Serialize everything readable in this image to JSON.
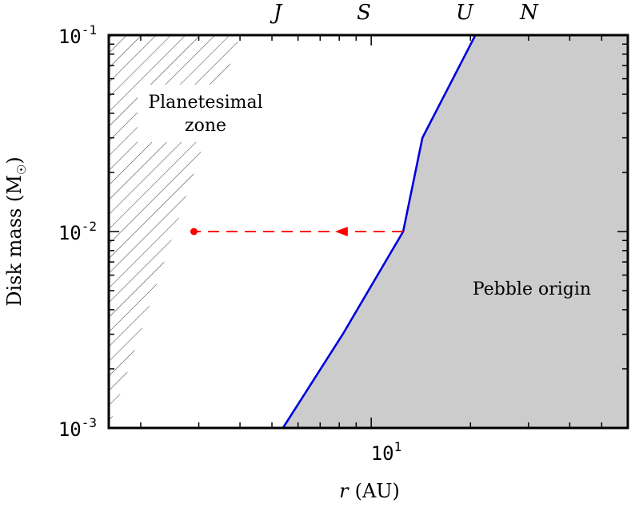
{
  "chart_data": {
    "type": "area",
    "xlabel_var": "r",
    "xlabel_unit": "(AU)",
    "ylabel": "Disk mass (M",
    "ylabel_sub": "☉",
    "ylabel_close": ")",
    "x_scale": "log",
    "y_scale": "log",
    "xlim": [
      1.6,
      60
    ],
    "ylim": [
      0.001,
      0.1
    ],
    "x_ticks": [
      {
        "value": 10,
        "base": "10",
        "exp": "1"
      }
    ],
    "y_ticks": [
      {
        "value": 0.1,
        "base": "10",
        "exp": "-1"
      },
      {
        "value": 0.01,
        "base": "10",
        "exp": "-2"
      },
      {
        "value": 0.001,
        "base": "10",
        "exp": "-3"
      }
    ],
    "top_markers": [
      {
        "label": "J",
        "r": 5.2
      },
      {
        "label": "S",
        "r": 9.5
      },
      {
        "label": "U",
        "r": 19.2
      },
      {
        "label": "N",
        "r": 30.1
      }
    ],
    "boundary_line": {
      "color": "#0000dd",
      "points": [
        [
          5.4,
          0.001
        ],
        [
          8.2,
          0.003
        ],
        [
          12.5,
          0.01
        ],
        [
          14.3,
          0.03
        ],
        [
          20.7,
          0.1
        ]
      ]
    },
    "regions": [
      {
        "name": "pebble-origin",
        "label": "Pebble origin",
        "fill": "#cccccc"
      },
      {
        "name": "planetesimal-zone",
        "label_line1": "Planetesimal",
        "label_line2": "zone",
        "hatch_color": "#222222"
      }
    ],
    "hatched_boundary": [
      [
        1.6,
        0.001
      ],
      [
        4.0,
        0.1
      ]
    ],
    "arrow": {
      "from": [
        12.5,
        0.01
      ],
      "to": [
        2.9,
        0.01
      ],
      "color": "#ff0000",
      "style": "dashed"
    }
  }
}
